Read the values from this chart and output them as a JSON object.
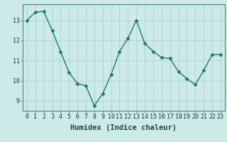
{
  "x": [
    0,
    1,
    2,
    3,
    4,
    5,
    6,
    7,
    8,
    9,
    10,
    11,
    12,
    13,
    14,
    15,
    16,
    17,
    18,
    19,
    20,
    21,
    22,
    23
  ],
  "y": [
    13.0,
    13.4,
    13.45,
    12.5,
    11.45,
    10.4,
    9.85,
    9.75,
    8.75,
    9.35,
    10.3,
    11.45,
    12.1,
    13.0,
    11.85,
    11.45,
    11.15,
    11.1,
    10.45,
    10.1,
    9.8,
    10.5,
    11.3,
    11.3
  ],
  "line_color": "#1e7a6a",
  "marker": "D",
  "marker_size": 2.5,
  "bg_color": "#cceae8",
  "grid_color": "#aad4d0",
  "xlabel": "Humidex (Indice chaleur)",
  "ylabel_ticks": [
    9,
    10,
    11,
    12,
    13
  ],
  "ylim": [
    8.5,
    13.8
  ],
  "xlim": [
    -0.5,
    23.5
  ],
  "xlabel_fontsize": 7.5,
  "tick_fontsize": 6.0,
  "line_width": 1.0
}
